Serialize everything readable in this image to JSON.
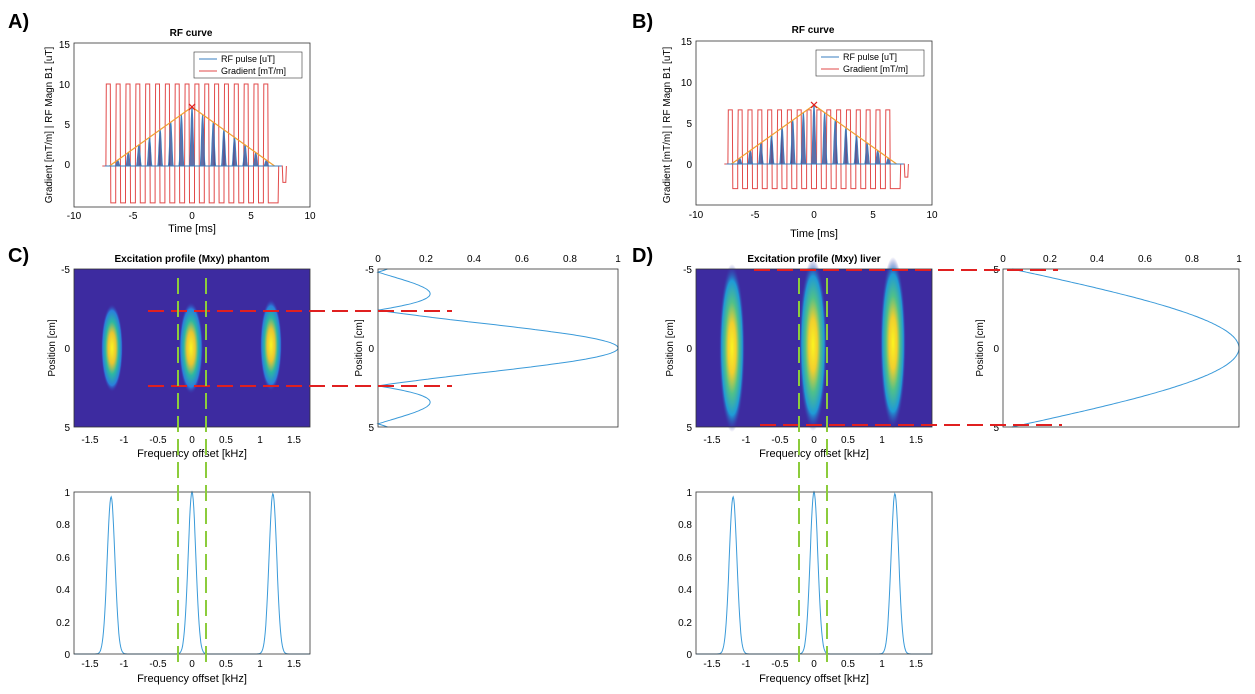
{
  "panels": {
    "A": {
      "label": "A)",
      "title": "RF curve",
      "xlabel": "Time [ms]",
      "ylabel": "Gradient [mT/m] | RF Magn B1 [uT]",
      "xticks": [
        "-10",
        "-5",
        "0",
        "5",
        "10"
      ],
      "yticks": [
        "0",
        "5",
        "10",
        "15"
      ],
      "legend": [
        "RF pulse [uT]",
        "Gradient [mT/m]"
      ]
    },
    "B": {
      "label": "B)",
      "title": "RF curve",
      "xlabel": "Time [ms]",
      "ylabel": "Gradient [mT/m] | RF Magn B1 [uT]",
      "xticks": [
        "-10",
        "-5",
        "0",
        "5",
        "10"
      ],
      "yticks": [
        "0",
        "5",
        "10",
        "15"
      ],
      "legend": [
        "RF pulse [uT]",
        "Gradient [mT/m]"
      ]
    },
    "C": {
      "label": "C)",
      "title": "Excitation profile (Mxy) phantom",
      "map_xlabel": "Frequency offset [kHz]",
      "map_ylabel": "Position [cm]",
      "map_xticks": [
        "-1.5",
        "-1",
        "-0.5",
        "0",
        "0.5",
        "1",
        "1.5"
      ],
      "map_yticks": [
        "-5",
        "0",
        "5"
      ],
      "side_ylabel": "Position [cm]",
      "side_xticks": [
        "0",
        "0.2",
        "0.4",
        "0.6",
        "0.8",
        "1"
      ],
      "side_yticks": [
        "-5",
        "0",
        "5"
      ],
      "bottom_xlabel": "Frequency offset [kHz]",
      "bottom_xticks": [
        "-1.5",
        "-1",
        "-0.5",
        "0",
        "0.5",
        "1",
        "1.5"
      ],
      "bottom_yticks": [
        "0",
        "0.2",
        "0.4",
        "0.6",
        "0.8",
        "1"
      ]
    },
    "D": {
      "label": "D)",
      "title": "Excitation profile (Mxy) liver",
      "map_xlabel": "Frequency offset [kHz]",
      "map_ylabel": "Position [cm]",
      "map_xticks": [
        "-1.5",
        "-1",
        "-0.5",
        "0",
        "0.5",
        "1",
        "1.5"
      ],
      "map_yticks": [
        "-5",
        "0",
        "5"
      ],
      "side_ylabel": "Position [cm]",
      "side_xticks": [
        "0",
        "0.2",
        "0.4",
        "0.6",
        "0.8",
        "1"
      ],
      "side_yticks": [
        "-5",
        "0",
        "5"
      ],
      "bottom_xlabel": "Frequency offset [kHz]",
      "bottom_xticks": [
        "-1.5",
        "-1",
        "-0.5",
        "0",
        "0.5",
        "1",
        "1.5"
      ],
      "bottom_yticks": [
        "0",
        "0.2",
        "0.4",
        "0.6",
        "0.8",
        "1"
      ]
    }
  },
  "colors": {
    "rf": "#3a7fc0",
    "gradient": "#e24a4a",
    "envelope": "#f0a030",
    "peak_marker": "#e02020",
    "guide_red": "#e02020",
    "guide_green": "#8ccc3c",
    "profile": "#3a9ad9"
  },
  "chart_data": [
    {
      "id": "A",
      "type": "line",
      "xlim": [
        -10,
        10
      ],
      "ylim": [
        0,
        15
      ],
      "grid": false,
      "legend_position": "top-right",
      "series": [
        {
          "name": "RF pulse [uT]",
          "kind": "sinc-train",
          "lobes": 17,
          "lobe_spacing_ms": 0.9,
          "peak": 7.2,
          "envelope_halfwidth_ms": 7
        },
        {
          "name": "Gradient [mT/m]",
          "kind": "bipolar",
          "lobes": 17,
          "x_start": -7.3,
          "x_end": 7.3,
          "high": 10,
          "low": -4.5,
          "rewinder": -2
        }
      ]
    },
    {
      "id": "B",
      "type": "line",
      "xlim": [
        -10,
        10
      ],
      "ylim": [
        0,
        15
      ],
      "grid": false,
      "legend_position": "top-right",
      "series": [
        {
          "name": "RF pulse [uT]",
          "kind": "sinc-train",
          "lobes": 17,
          "lobe_spacing_ms": 0.9,
          "peak": 7.2,
          "envelope_halfwidth_ms": 7
        },
        {
          "name": "Gradient [mT/m]",
          "kind": "bipolar",
          "lobes": 17,
          "x_start": -7.3,
          "x_end": 7.3,
          "high": 6.6,
          "low": -3,
          "rewinder": -1.6
        }
      ]
    },
    {
      "id": "C-map",
      "type": "heatmap",
      "xlim": [
        -1.75,
        1.75
      ],
      "ylim": [
        -5,
        5
      ],
      "peaks_khz": [
        -1.2,
        0,
        1.2
      ],
      "position_halfwidth_cm": 1.0
    },
    {
      "id": "C-side",
      "type": "line",
      "xlim": [
        0,
        1
      ],
      "ylim": [
        -5,
        5
      ],
      "x_quantity": "Mxy",
      "y_quantity": "Position [cm]",
      "peak": 1.0,
      "halfwidth_cm": 2.4
    },
    {
      "id": "C-bottom",
      "type": "line",
      "xlim": [
        -1.75,
        1.75
      ],
      "ylim": [
        0,
        1
      ],
      "peaks_khz": [
        -1.2,
        0,
        1.2
      ],
      "peak_values": [
        0.97,
        1.0,
        0.99
      ],
      "peak_width_khz": 0.12
    },
    {
      "id": "D-map",
      "type": "heatmap",
      "xlim": [
        -1.75,
        1.75
      ],
      "ylim": [
        -5,
        5
      ],
      "peaks_khz": [
        -1.2,
        0,
        1.2
      ],
      "position_halfwidth_cm": 5.0
    },
    {
      "id": "D-side",
      "type": "line",
      "xlim": [
        0,
        1
      ],
      "ylim": [
        -5,
        5
      ],
      "x_quantity": "Mxy",
      "y_quantity": "Position [cm]",
      "peak": 1.0,
      "halfwidth_cm": 5.0
    },
    {
      "id": "D-bottom",
      "type": "line",
      "xlim": [
        -1.75,
        1.75
      ],
      "ylim": [
        0,
        1
      ],
      "peaks_khz": [
        -1.2,
        0,
        1.2
      ],
      "peak_values": [
        0.97,
        1.0,
        0.99
      ],
      "peak_width_khz": 0.12
    }
  ]
}
